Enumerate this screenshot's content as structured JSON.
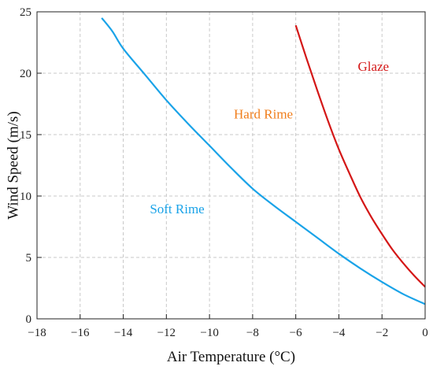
{
  "chart_data": {
    "type": "line",
    "xlabel": "Air Temperature (°C)",
    "ylabel": "Wind Speed (m/s)",
    "xlim": [
      -18,
      0
    ],
    "ylim": [
      0,
      25
    ],
    "xticks": [
      -18,
      -16,
      -14,
      -12,
      -10,
      -8,
      -6,
      -4,
      -2,
      0
    ],
    "yticks": [
      0,
      5,
      10,
      15,
      20,
      25
    ],
    "xtick_labels": [
      "−18",
      "−16",
      "−14",
      "−12",
      "−10",
      "−8",
      "−6",
      "−4",
      "−2",
      "0"
    ],
    "ytick_labels": [
      "0",
      "5",
      "10",
      "15",
      "20",
      "25"
    ],
    "grid": true,
    "series": [
      {
        "color": "#1aa3e8",
        "x": [
          -15,
          -14.5,
          -14,
          -13,
          -12,
          -11,
          -10,
          -9,
          -8,
          -7,
          -6,
          -5,
          -4,
          -3,
          -2,
          -1,
          0
        ],
        "y": [
          24.5,
          23.4,
          22.0,
          19.9,
          17.8,
          15.9,
          14.1,
          12.3,
          10.6,
          9.2,
          7.9,
          6.6,
          5.3,
          4.1,
          3.0,
          2.0,
          1.2
        ]
      },
      {
        "color": "#d41717",
        "x": [
          -6,
          -5.5,
          -5,
          -4.5,
          -4,
          -3.5,
          -3,
          -2.5,
          -2,
          -1.5,
          -1,
          -0.5,
          0
        ],
        "y": [
          23.9,
          21.2,
          18.6,
          16.1,
          13.8,
          11.8,
          9.9,
          8.3,
          6.9,
          5.6,
          4.5,
          3.5,
          2.6
        ]
      }
    ],
    "annotations": [
      {
        "text": "Soft Rime",
        "x": -11.5,
        "y": 8.6,
        "color": "#1aa3e8"
      },
      {
        "text": "Hard Rime",
        "x": -7.5,
        "y": 16.3,
        "color": "#f07d1a"
      },
      {
        "text": "Glaze",
        "x": -2.4,
        "y": 20.2,
        "color": "#d41717"
      }
    ]
  }
}
